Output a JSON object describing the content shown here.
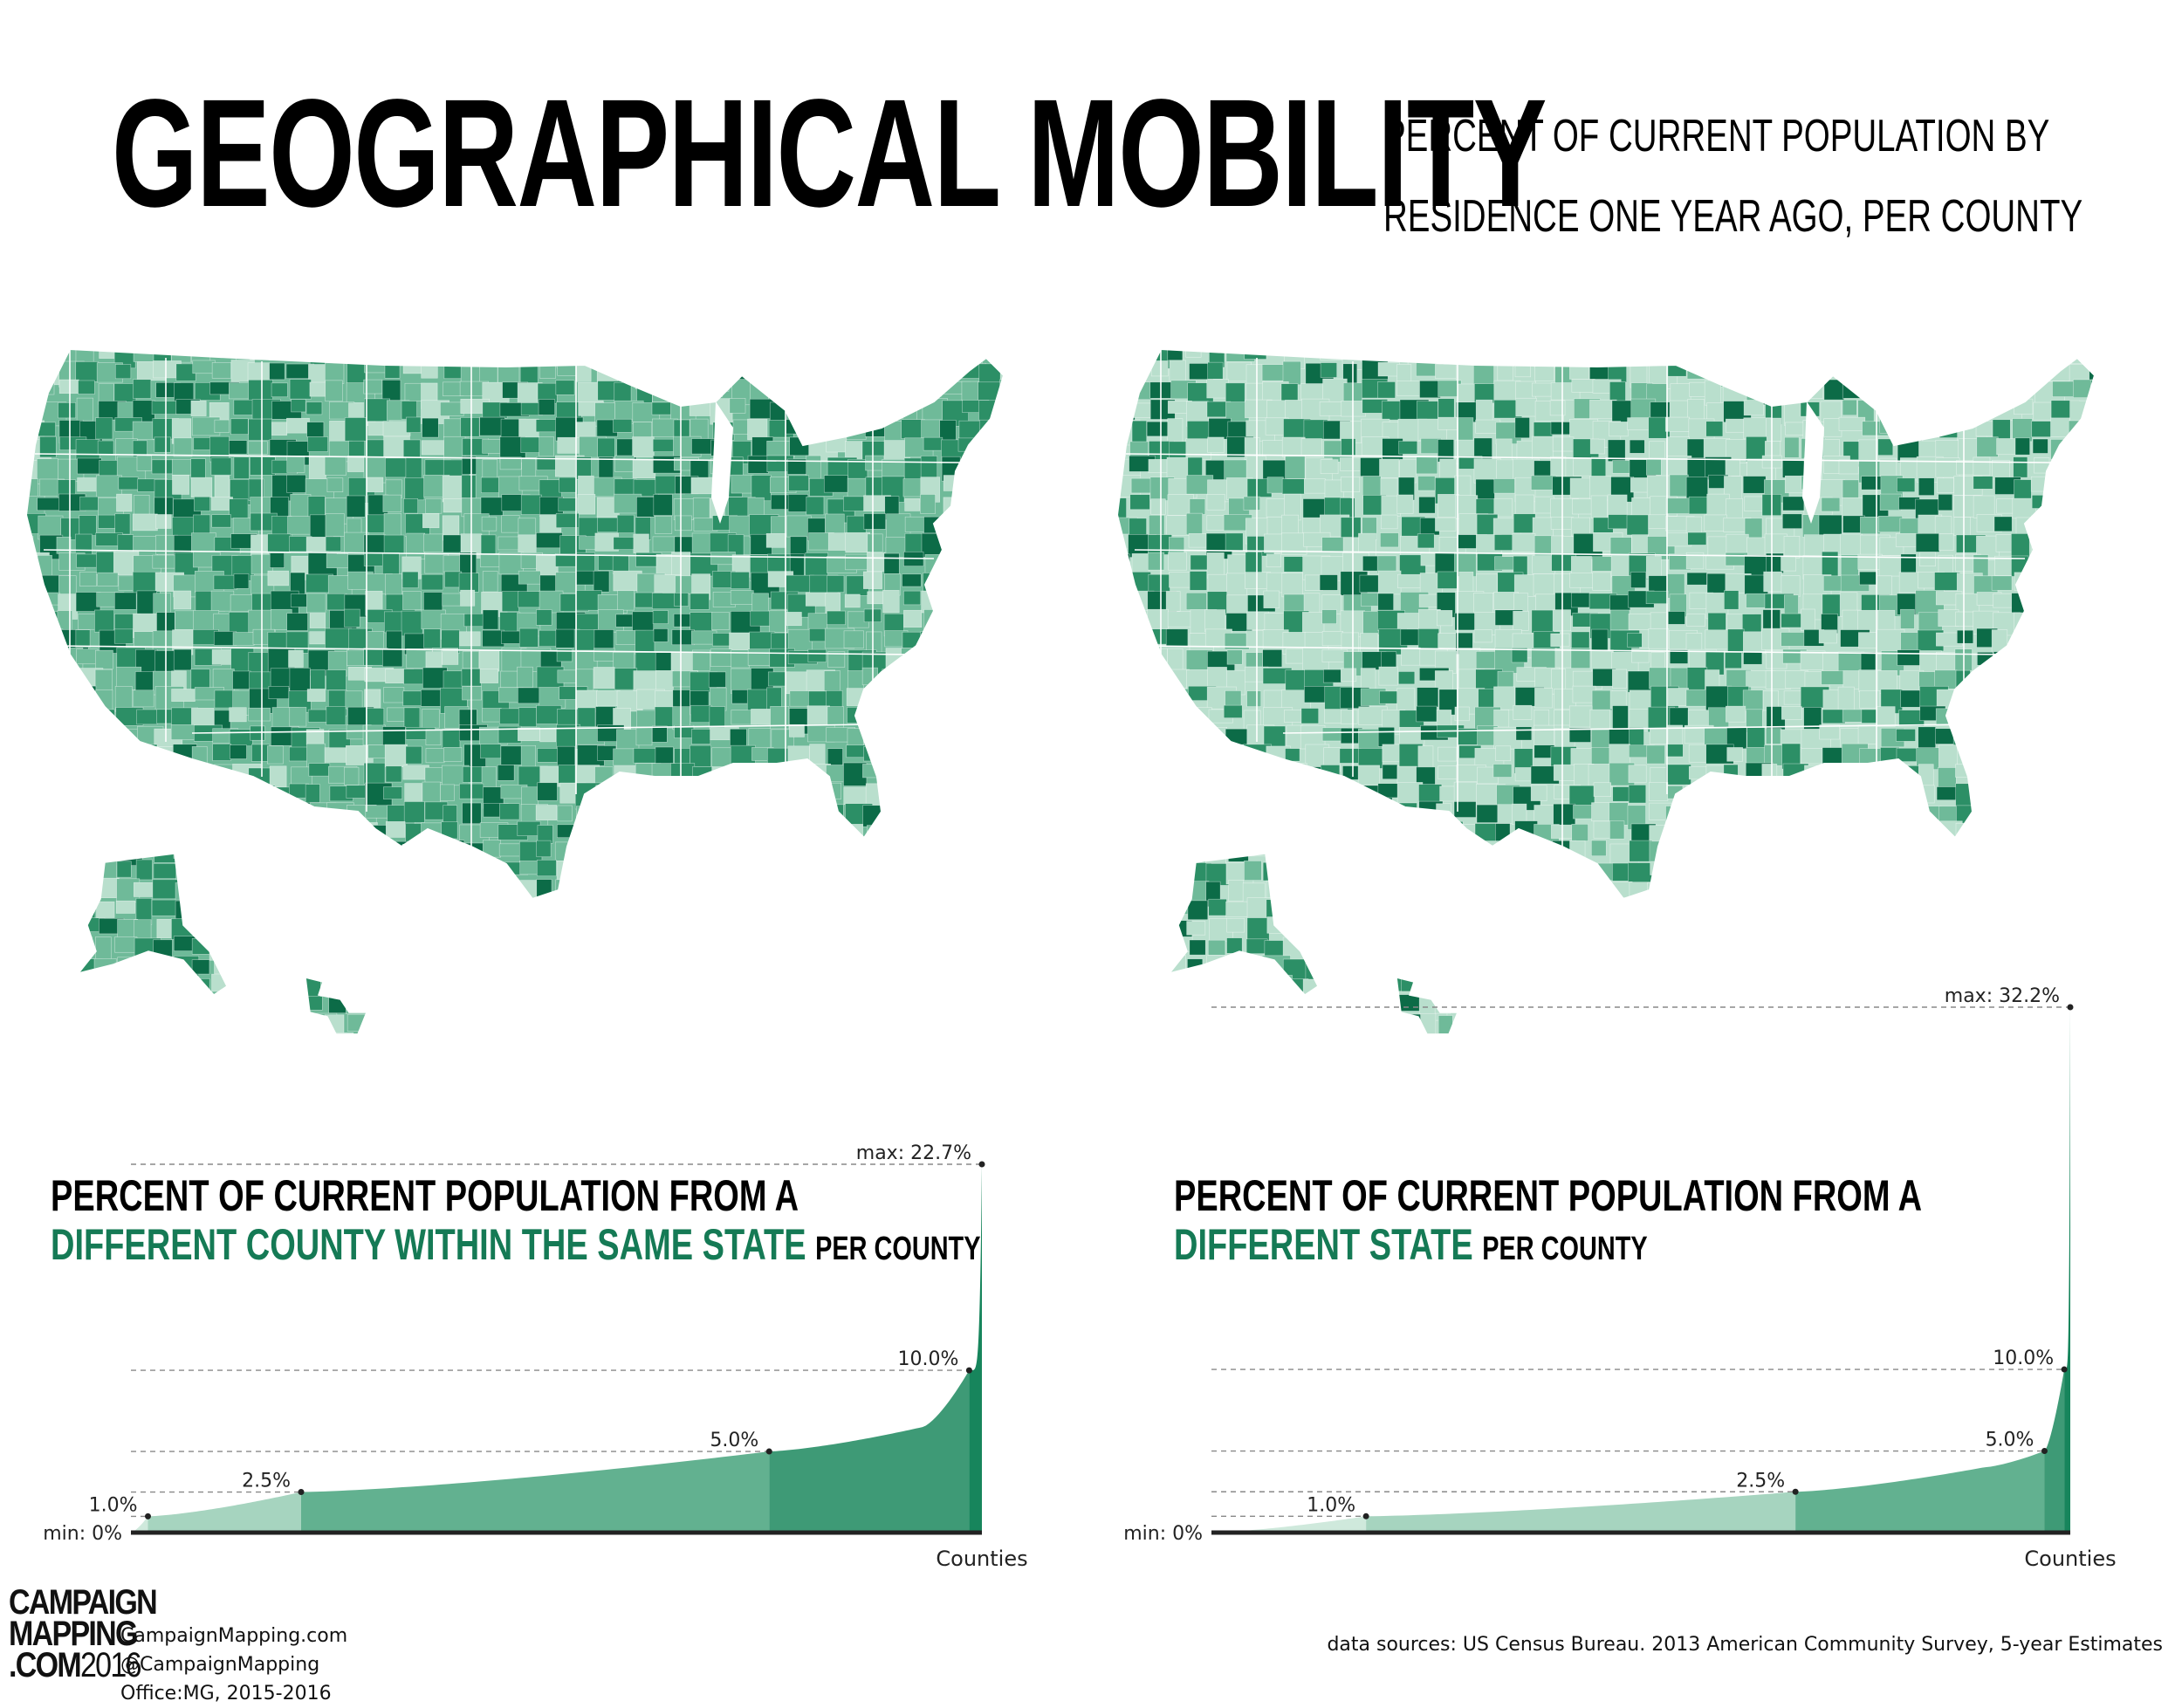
{
  "header": {
    "title": "GEOGRAPHICAL MOBILITY",
    "subtitle_line1": "PERCENT OF CURRENT POPULATION BY",
    "subtitle_line2": "RESIDENCE ONE YEAR AGO, PER COUNTY"
  },
  "colors": {
    "accent": "#157a55",
    "map_light": "#b9dfcd",
    "map_mid": "#6fba99",
    "map_dark": "#2c8f66",
    "map_darkest": "#0c6b47",
    "band1": "#cfe9dc",
    "band2": "#a6d4bf",
    "band3": "#62b190",
    "band4": "#3e9a76",
    "band5": "#17855c"
  },
  "maps": [
    {
      "name": "same-state-map",
      "tone": "dark"
    },
    {
      "name": "different-state-map",
      "tone": "light"
    }
  ],
  "chart_data": [
    {
      "type": "area",
      "title_line1": "PERCENT OF CURRENT POPULATION FROM A",
      "title_accent": "DIFFERENT COUNTY WITHIN THE SAME STATE",
      "title_suffix": "PER COUNTY",
      "xlabel": "Counties",
      "ylim": [
        0,
        22.7
      ],
      "x": [
        0,
        0.02,
        0.2,
        0.75,
        0.93,
        0.985,
        1.0
      ],
      "y": [
        0,
        1.0,
        2.5,
        5.0,
        6.5,
        10.0,
        22.7
      ],
      "thresholds": [
        {
          "label": "min: 0%",
          "value": 0,
          "x": 0
        },
        {
          "label": "1.0%",
          "value": 1.0,
          "x": 0.02
        },
        {
          "label": "2.5%",
          "value": 2.5,
          "x": 0.2
        },
        {
          "label": "5.0%",
          "value": 5.0,
          "x": 0.75
        },
        {
          "label": "10.0%",
          "value": 10.0,
          "x": 0.985
        },
        {
          "label": "max: 22.7%",
          "value": 22.7,
          "x": 1.0
        }
      ]
    },
    {
      "type": "area",
      "title_line1": "PERCENT OF CURRENT POPULATION FROM A",
      "title_accent": "DIFFERENT  STATE",
      "title_suffix": "PER COUNTY",
      "xlabel": "Counties",
      "ylim": [
        0,
        32.2
      ],
      "x": [
        0,
        0.18,
        0.68,
        0.9,
        0.97,
        0.993,
        1.0
      ],
      "y": [
        0,
        1.0,
        2.5,
        4.0,
        5.0,
        10.0,
        32.2
      ],
      "thresholds": [
        {
          "label": "min: 0%",
          "value": 0,
          "x": 0
        },
        {
          "label": "1.0%",
          "value": 1.0,
          "x": 0.18
        },
        {
          "label": "2.5%",
          "value": 2.5,
          "x": 0.68
        },
        {
          "label": "5.0%",
          "value": 5.0,
          "x": 0.97
        },
        {
          "label": "10.0%",
          "value": 10.0,
          "x": 0.993
        },
        {
          "label": "max: 32.2%",
          "value": 32.2,
          "x": 1.0
        }
      ]
    }
  ],
  "branding": {
    "logo_line1": "CAMPAIGN",
    "logo_line2": "MAPPING",
    "logo_line3": ".COM",
    "logo_year": "2016",
    "site": "CampaignMapping.com",
    "handle": "@CampaignMapping",
    "office": "Office:MG, 2015-2016"
  },
  "sources": "data sources: US Census Bureau. 2013 American Community Survey, 5-year Estimates"
}
